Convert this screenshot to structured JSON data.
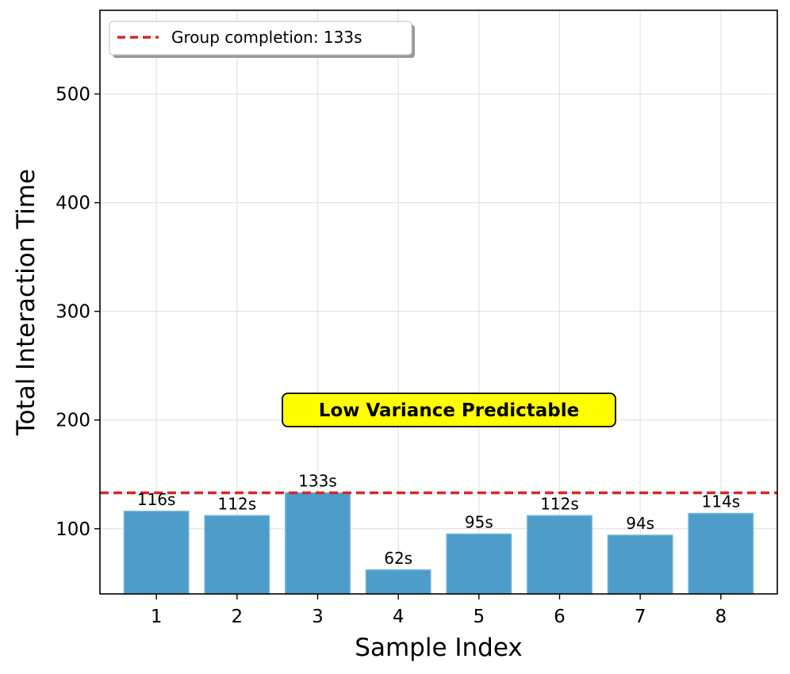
{
  "chart_data": {
    "type": "bar",
    "categories": [
      "1",
      "2",
      "3",
      "4",
      "5",
      "6",
      "7",
      "8"
    ],
    "values": [
      116,
      112,
      133,
      62,
      95,
      112,
      94,
      114
    ],
    "value_labels": [
      "116s",
      "112s",
      "133s",
      "62s",
      "95s",
      "112s",
      "94s",
      "114s"
    ],
    "xlabel": "Sample Index",
    "ylabel": "Total Interaction Time",
    "ylim": [
      40,
      577
    ],
    "yticks": [
      100,
      200,
      300,
      400,
      500
    ],
    "grid": true,
    "reference_line": {
      "value": 133,
      "label": "Group completion: 133s",
      "color": "#d62728",
      "style": "dashed"
    },
    "legend_position": "top-left",
    "annotation": {
      "text": "Low Variance Predictable",
      "background": "#ffff00",
      "anchor_value": 210
    },
    "bar_color": "#4e9cc9",
    "bar_edge_color": "#6fb3dc"
  }
}
